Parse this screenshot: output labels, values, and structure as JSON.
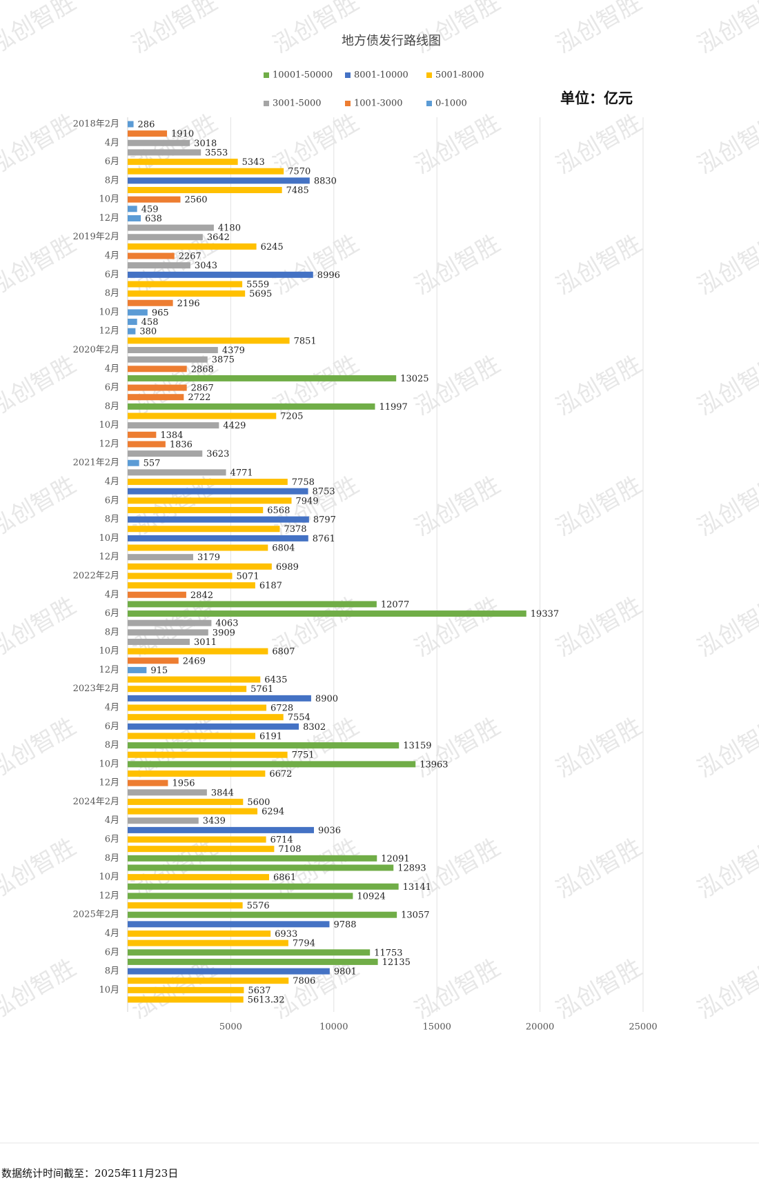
{
  "chart_data": {
    "type": "bar",
    "orientation": "horizontal",
    "title": "地方债发行路线图",
    "unit": "单位：亿元",
    "legend": [
      {
        "name": "10001-50000",
        "color": "#70ad47"
      },
      {
        "name": "8001-10000",
        "color": "#4472c4"
      },
      {
        "name": "5001-8000",
        "color": "#ffc000"
      },
      {
        "name": "3001-5000",
        "color": "#a5a5a5"
      },
      {
        "name": "1001-3000",
        "color": "#ed7d31"
      },
      {
        "name": "0-1000",
        "color": "#5b9bd5"
      }
    ],
    "categories": [
      "2018年2月",
      null,
      "4月",
      null,
      "6月",
      null,
      "8月",
      null,
      "10月",
      null,
      "12月",
      null,
      "2019年2月",
      null,
      "4月",
      null,
      "6月",
      null,
      "8月",
      null,
      "10月",
      null,
      "12月",
      null,
      "2020年2月",
      null,
      "4月",
      null,
      "6月",
      null,
      "8月",
      null,
      "10月",
      null,
      "12月",
      null,
      "2021年2月",
      null,
      "4月",
      null,
      "6月",
      null,
      "8月",
      null,
      "10月",
      null,
      "12月",
      null,
      "2022年2月",
      null,
      "4月",
      null,
      "6月",
      null,
      "8月",
      null,
      "10月",
      null,
      "12月",
      null,
      "2023年2月",
      null,
      "4月",
      null,
      "6月",
      null,
      "8月",
      null,
      "10月",
      null,
      "12月",
      null,
      "2024年2月",
      null,
      "4月",
      null,
      "6月",
      null,
      "8月",
      null,
      "10月",
      null,
      "12月",
      null,
      "2025年2月",
      null,
      "4月",
      null,
      "6月",
      null,
      "8月",
      null,
      "10月",
      null
    ],
    "values": [
      286,
      1910,
      3018,
      3553,
      5343,
      7570,
      8830,
      7485,
      2560,
      459,
      638,
      4180,
      3642,
      6245,
      2267,
      3043,
      8996,
      5559,
      5695,
      2196,
      965,
      458,
      380,
      7851,
      4379,
      3875,
      2868,
      13025,
      2867,
      2722,
      11997,
      7205,
      4429,
      1384,
      1836,
      3623,
      557,
      4771,
      7758,
      8753,
      7949,
      6568,
      8797,
      7378,
      8761,
      6804,
      3179,
      6989,
      5071,
      6187,
      2842,
      12077,
      19337,
      4063,
      3909,
      3011,
      6807,
      2469,
      915,
      6435,
      5761,
      8900,
      6728,
      7554,
      8302,
      6191,
      13159,
      7751,
      13963,
      6672,
      1956,
      3844,
      5600,
      6294,
      3439,
      9036,
      6714,
      7108,
      12091,
      12893,
      6861,
      13141,
      10924,
      5576,
      13057,
      9788,
      6933,
      7794,
      11753,
      12135,
      9801,
      7806,
      5637,
      5613.32
    ],
    "colors": [
      "#5b9bd5",
      "#ed7d31",
      "#a5a5a5",
      "#a5a5a5",
      "#ffc000",
      "#ffc000",
      "#4472c4",
      "#ffc000",
      "#ed7d31",
      "#5b9bd5",
      "#5b9bd5",
      "#a5a5a5",
      "#a5a5a5",
      "#ffc000",
      "#ed7d31",
      "#a5a5a5",
      "#4472c4",
      "#ffc000",
      "#ffc000",
      "#ed7d31",
      "#5b9bd5",
      "#5b9bd5",
      "#5b9bd5",
      "#ffc000",
      "#a5a5a5",
      "#a5a5a5",
      "#ed7d31",
      "#70ad47",
      "#ed7d31",
      "#ed7d31",
      "#70ad47",
      "#ffc000",
      "#a5a5a5",
      "#ed7d31",
      "#ed7d31",
      "#a5a5a5",
      "#5b9bd5",
      "#a5a5a5",
      "#ffc000",
      "#4472c4",
      "#ffc000",
      "#ffc000",
      "#4472c4",
      "#ffc000",
      "#4472c4",
      "#ffc000",
      "#a5a5a5",
      "#ffc000",
      "#ffc000",
      "#ffc000",
      "#ed7d31",
      "#70ad47",
      "#70ad47",
      "#a5a5a5",
      "#a5a5a5",
      "#a5a5a5",
      "#ffc000",
      "#ed7d31",
      "#5b9bd5",
      "#ffc000",
      "#ffc000",
      "#4472c4",
      "#ffc000",
      "#ffc000",
      "#4472c4",
      "#ffc000",
      "#70ad47",
      "#ffc000",
      "#70ad47",
      "#ffc000",
      "#ed7d31",
      "#a5a5a5",
      "#ffc000",
      "#ffc000",
      "#a5a5a5",
      "#4472c4",
      "#ffc000",
      "#ffc000",
      "#70ad47",
      "#70ad47",
      "#ffc000",
      "#70ad47",
      "#70ad47",
      "#ffc000",
      "#70ad47",
      "#4472c4",
      "#ffc000",
      "#ffc000",
      "#70ad47",
      "#70ad47",
      "#4472c4",
      "#ffc000",
      "#ffc000",
      "#ffc000"
    ],
    "xlim": [
      0,
      25000
    ],
    "xticks": [
      5000,
      10000,
      15000,
      20000,
      25000
    ],
    "grid": true
  },
  "watermark": "泓创智胜",
  "footer": "数据统计时间截至：2025年11月23日"
}
